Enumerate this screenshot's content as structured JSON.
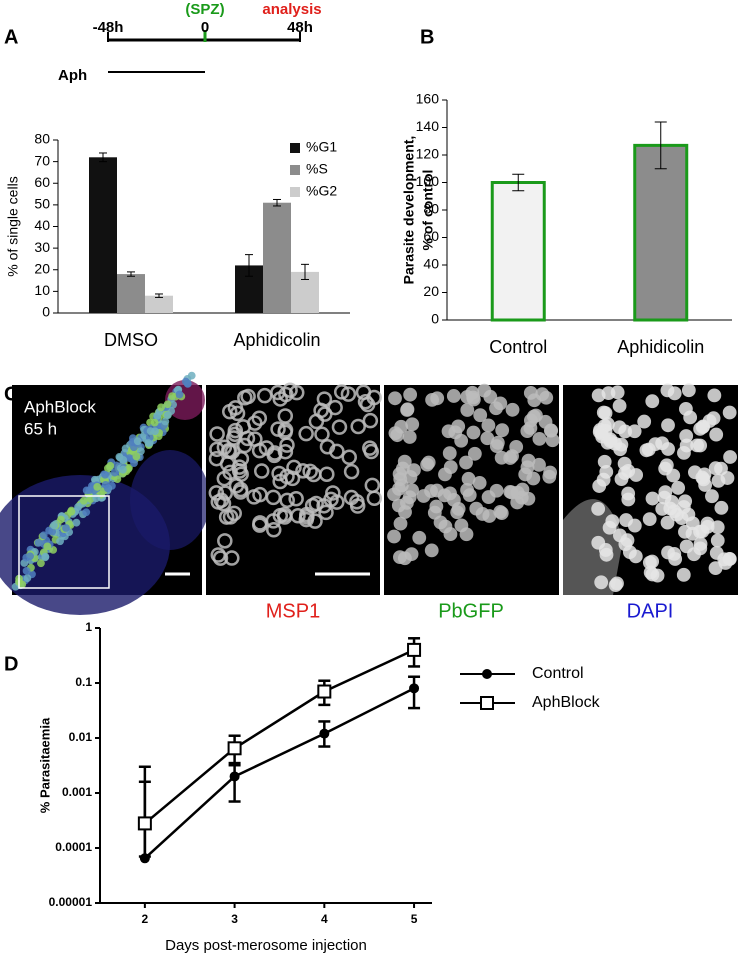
{
  "panel_labels": [
    "A",
    "B",
    "C",
    "D"
  ],
  "timeline": {
    "ticks": [
      "-48h",
      "0",
      "48h"
    ],
    "injection": "(SPZ)",
    "injection_color": "#1a9a1a",
    "endpoint": "analysis",
    "endpoint_color": "#e0201b",
    "treatment": "Aph"
  },
  "microscopy": {
    "overlay_label": [
      "AphBlock",
      "65 h"
    ],
    "channels": [
      {
        "name": "MSP1",
        "color": "#e0201b"
      },
      {
        "name": "PbGFP",
        "color": "#1a9a1a"
      },
      {
        "name": "DAPI",
        "color": "#1a1ad0"
      }
    ]
  },
  "chart_data": [
    {
      "type": "bar",
      "categories": [
        "DMSO",
        "Aphidicolin"
      ],
      "series": [
        {
          "name": "%G1",
          "color": "#111111",
          "values": [
            72,
            22
          ],
          "errors": [
            2,
            5
          ]
        },
        {
          "name": "%S",
          "color": "#8c8c8c",
          "values": [
            18,
            51
          ],
          "errors": [
            1,
            1.5
          ]
        },
        {
          "name": "%G2",
          "color": "#cccccc",
          "values": [
            8,
            19
          ],
          "errors": [
            0.8,
            3.5
          ]
        }
      ],
      "ylabel": "% of single cells",
      "ylim": [
        0,
        80
      ],
      "yticks": [
        0,
        10,
        20,
        30,
        40,
        50,
        60,
        70,
        80
      ]
    },
    {
      "type": "bar",
      "categories": [
        "Control",
        "Aphidicolin"
      ],
      "values": [
        100,
        127
      ],
      "errors": [
        6,
        17
      ],
      "colors": [
        "#f2f2f2",
        "#8c8c8c"
      ],
      "edge_color": "#1a9a1a",
      "ylabel": [
        "Parasite development,",
        "% of control"
      ],
      "ylim": [
        0,
        160
      ],
      "yticks": [
        0,
        20,
        40,
        60,
        80,
        100,
        120,
        140,
        160
      ]
    },
    {
      "type": "line",
      "x": [
        2,
        3,
        4,
        5
      ],
      "log_y": true,
      "series": [
        {
          "name": "Control",
          "color": "#000000",
          "marker": "filled-circle",
          "values": [
            6.5e-05,
            0.002,
            0.012,
            0.08
          ],
          "err_low": [
            null,
            0.0007,
            0.007,
            0.035
          ],
          "err_high": [
            0.0016,
            0.0032,
            0.02,
            0.13
          ]
        },
        {
          "name": "AphBlock",
          "color": "#000000",
          "marker": "open-square",
          "values": [
            0.00028,
            0.0065,
            0.07,
            0.4
          ],
          "err_low": [
            7e-05,
            0.0035,
            0.04,
            0.2
          ],
          "err_high": [
            0.003,
            0.011,
            0.11,
            0.65
          ]
        }
      ],
      "xlabel": "Days post-merosome injection",
      "ylabel": "% Parasitaemia",
      "xlim": [
        1.5,
        5.2
      ],
      "xticks": [
        2,
        3,
        4,
        5
      ],
      "ylim": [
        1e-05,
        1
      ],
      "yticks": [
        {
          "value": 1e-05,
          "label": "0.00001"
        },
        0.0001,
        0.001,
        0.01,
        0.1,
        1
      ]
    }
  ]
}
